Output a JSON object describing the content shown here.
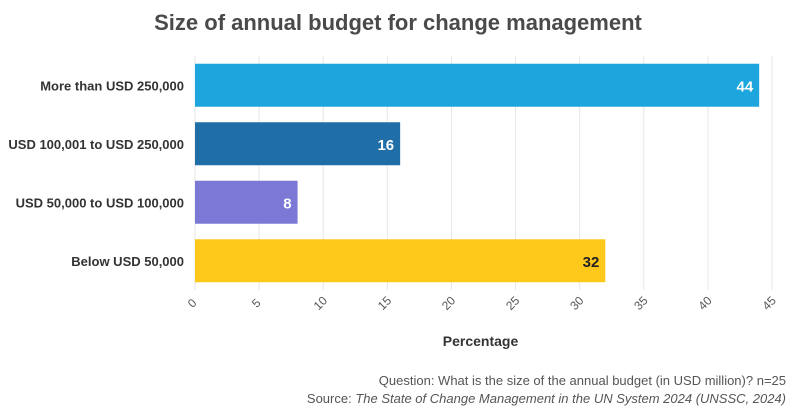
{
  "chart_data": {
    "type": "bar",
    "orientation": "horizontal",
    "title": "Size of annual budget for change management",
    "categories": [
      "More than USD 250,000",
      "USD 100,001 to USD 250,000",
      "USD 50,000 to USD 100,000",
      "Below USD 50,000"
    ],
    "values": [
      44,
      16,
      8,
      32
    ],
    "colors": [
      "#1ca6dd",
      "#1f6ea8",
      "#7b78d6",
      "#fec91b"
    ],
    "label_colors": [
      "#ffffff",
      "#ffffff",
      "#ffffff",
      "#222222"
    ],
    "xlabel": "Percentage",
    "ylabel": "",
    "xlim": [
      0,
      45
    ],
    "xticks": [
      0,
      5,
      10,
      15,
      20,
      25,
      30,
      35,
      40,
      45
    ],
    "grid": true
  },
  "footer": {
    "question": "Question: What is the size of the annual budget (in USD million)? n=25",
    "source_prefix": "Source: ",
    "source_title": "The State of Change Management in the UN System 2024 (UNSSC, 2024)"
  }
}
